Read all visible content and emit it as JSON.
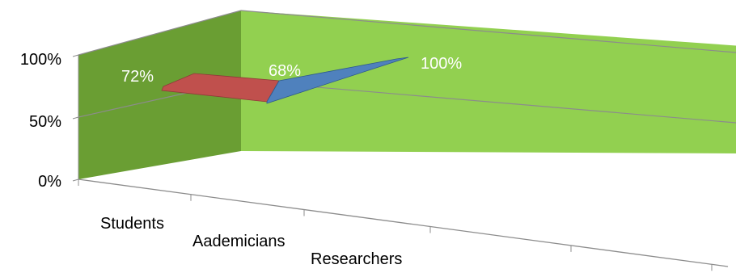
{
  "chart_data": {
    "type": "line",
    "style": "3d-line",
    "categories": [
      "Students",
      "Aademicians",
      "Researchers"
    ],
    "series": [
      {
        "values": [
          72,
          68,
          100
        ],
        "data_labels": [
          "72%",
          "68%",
          "100%"
        ]
      }
    ],
    "segment_colors": [
      "#c0504d",
      "#4f81bd"
    ],
    "y_tick_labels": [
      "0%",
      "50%",
      "100%"
    ],
    "ylim": [
      0,
      100
    ],
    "grid": true,
    "legend": "none",
    "colors": {
      "back_wall": "#92d050",
      "side_wall": "#6a9e33",
      "gridline": "#8c8c8c",
      "axis": "#8c8c8c",
      "data_label": "#ffffff",
      "tick_label": "#000000"
    }
  }
}
